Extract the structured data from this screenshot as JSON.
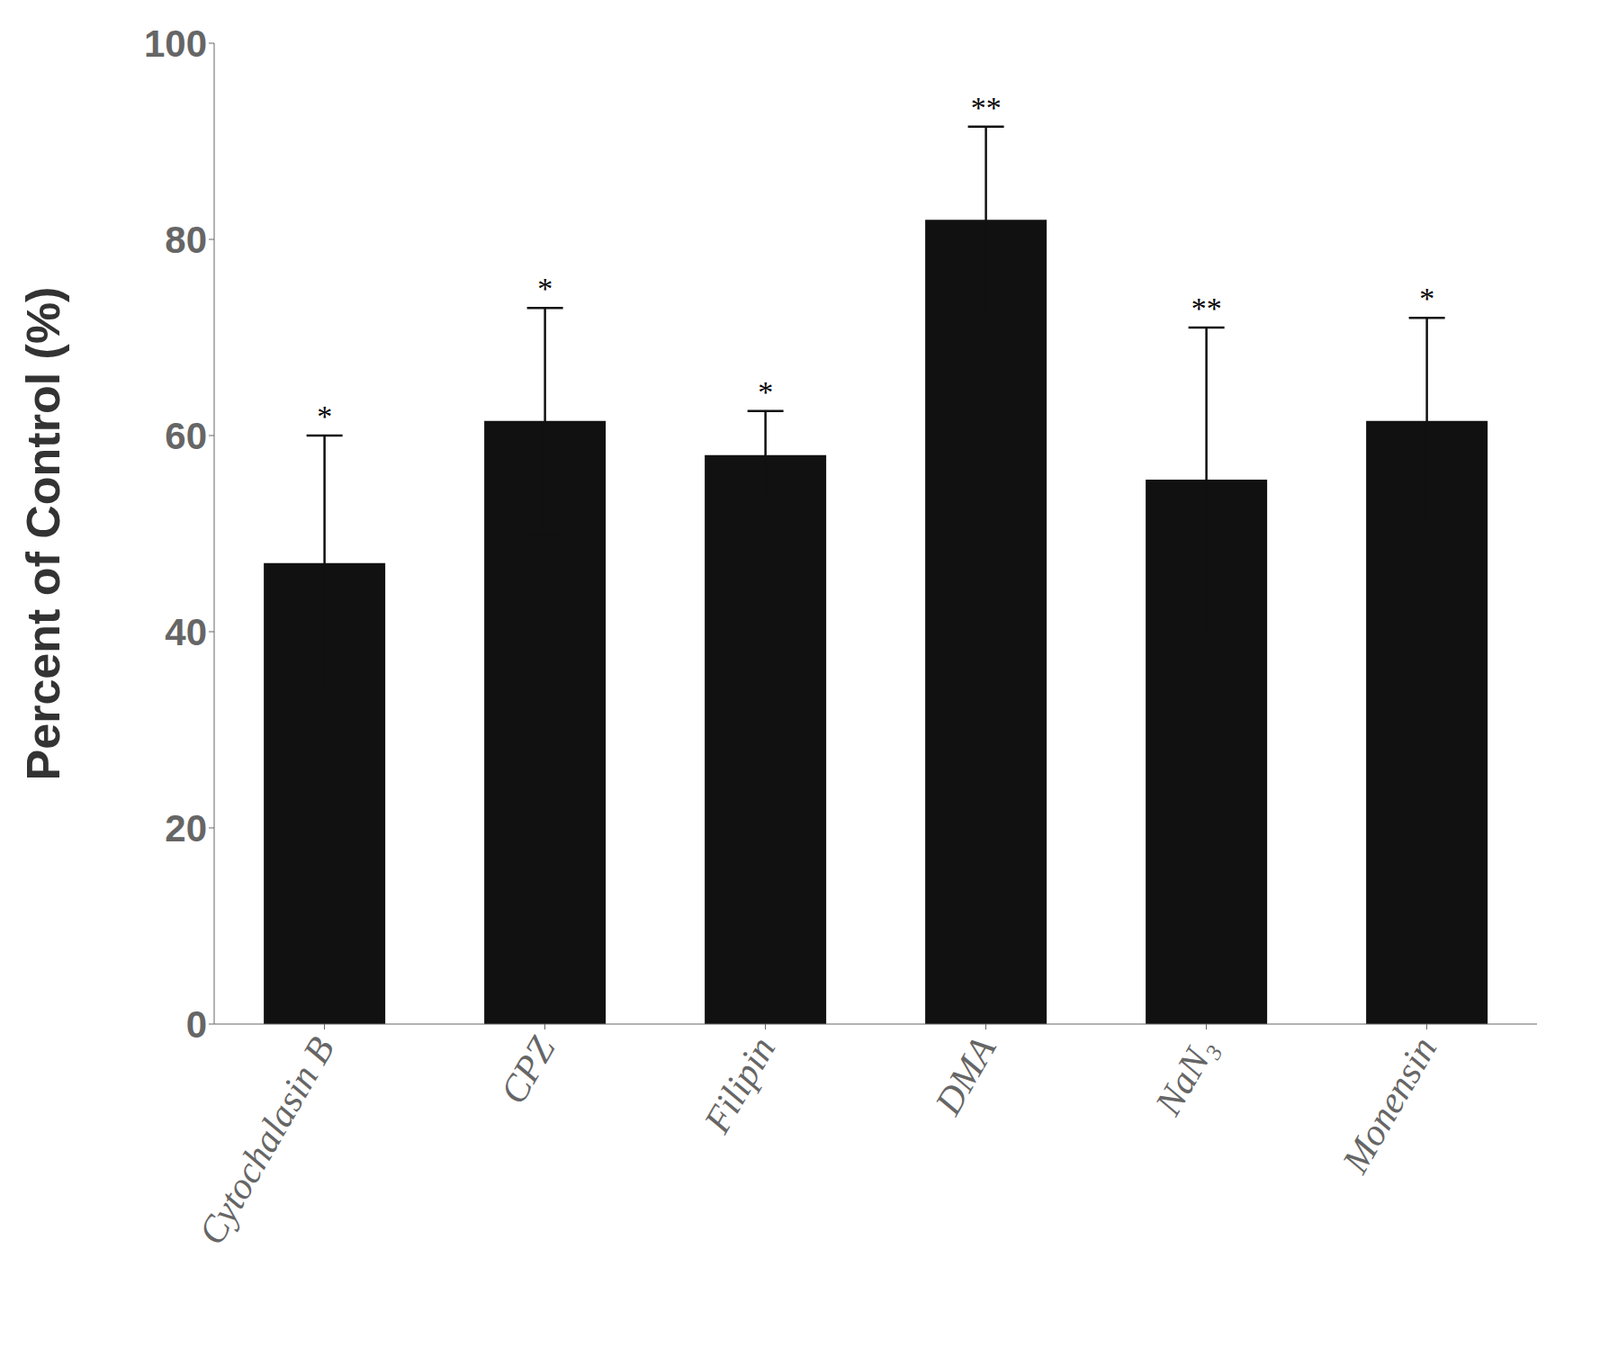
{
  "chart_data": {
    "type": "bar",
    "categories": [
      "Cytochalasin B",
      "CPZ",
      "Filipin",
      "DMA",
      "NaN₃",
      "Monensin"
    ],
    "values": [
      47.0,
      61.5,
      58.0,
      82.0,
      55.5,
      61.5
    ],
    "errors": [
      13.0,
      11.5,
      4.5,
      9.5,
      15.5,
      10.5
    ],
    "annotations": [
      "*",
      "*",
      "*",
      "**",
      "**",
      "*"
    ],
    "color": "#111111",
    "ylabel": "Percent of Control (%)",
    "ylim": [
      0,
      100
    ],
    "yticks": [
      0,
      20,
      40,
      60,
      80,
      100
    ],
    "grid": false
  }
}
